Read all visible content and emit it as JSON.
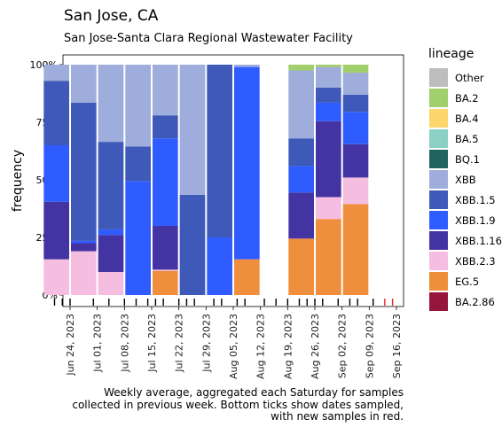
{
  "header": {
    "title": "San Jose, CA",
    "subtitle": "San Jose-Santa Clara Regional Wastewater Facility"
  },
  "caption": {
    "lines": [
      "Weekly average, aggregated each Saturday for samples",
      "collected in previous week. Bottom ticks show dates sampled,",
      "with new samples in red."
    ]
  },
  "legend": {
    "title": "lineage",
    "items": [
      {
        "label": "Other",
        "color": "#bdbdbd"
      },
      {
        "label": "BA.2",
        "color": "#a1cf6b"
      },
      {
        "label": "BA.4",
        "color": "#fcd56b"
      },
      {
        "label": "BA.5",
        "color": "#8ccfc4"
      },
      {
        "label": "BQ.1",
        "color": "#21635e"
      },
      {
        "label": "XBB",
        "color": "#9eaddb"
      },
      {
        "label": "XBB.1.5",
        "color": "#3f59b8"
      },
      {
        "label": "XBB.1.9",
        "color": "#2f5cff"
      },
      {
        "label": "XBB.1.16",
        "color": "#4433a3"
      },
      {
        "label": "XBB.2.3",
        "color": "#f5bde0"
      },
      {
        "label": "EG.5",
        "color": "#ef8e3c"
      },
      {
        "label": "BA.2.86",
        "color": "#96153d"
      }
    ]
  },
  "chart_data": {
    "type": "bar",
    "stacked": true,
    "ylabel": "frequency",
    "ylim": [
      0,
      1
    ],
    "yticks": [
      0,
      0.25,
      0.5,
      0.75,
      1
    ],
    "ytick_labels": [
      "0%",
      "25%",
      "50%",
      "75%",
      "100%"
    ],
    "xlim": [
      "2023-06-24",
      "2023-09-16"
    ],
    "xtick_labels": [
      "Jun 24, 2023",
      "Jul 01, 2023",
      "Jul 08, 2023",
      "Jul 15, 2023",
      "Jul 22, 2023",
      "Jul 29, 2023",
      "Aug 05, 2023",
      "Aug 12, 2023",
      "Aug 19, 2023",
      "Aug 26, 2023",
      "Sep 02, 2023",
      "Sep 09, 2023",
      "Sep 16, 2023"
    ],
    "categories": [
      "2023-06-24",
      "2023-07-01",
      "2023-07-08",
      "2023-07-15",
      "2023-07-22",
      "2023-07-29",
      "2023-08-05",
      "2023-08-12",
      "2023-08-19",
      "2023-08-26",
      "2023-09-02",
      "2023-09-09",
      "2023-09-16"
    ],
    "series": [
      {
        "name": "EG.5",
        "values": [
          0,
          0,
          0,
          0,
          0.105,
          0,
          0,
          0.155,
          0,
          0.245,
          0.33,
          0.395,
          0
        ]
      },
      {
        "name": "XBB.2.3",
        "values": [
          0.155,
          0.19,
          0.1,
          0,
          0.005,
          0,
          0,
          0,
          0,
          0,
          0.095,
          0.115,
          0
        ]
      },
      {
        "name": "XBB.1.16",
        "values": [
          0.25,
          0.035,
          0.16,
          0,
          0.19,
          0,
          0,
          0,
          0,
          0.2,
          0.33,
          0.145,
          0
        ]
      },
      {
        "name": "XBB.1.9",
        "values": [
          0.245,
          0.01,
          0.025,
          0.495,
          0.38,
          0,
          0.25,
          0.835,
          0,
          0.115,
          0.08,
          0.14,
          0
        ]
      },
      {
        "name": "XBB.1.5",
        "values": [
          0.28,
          0.6,
          0.38,
          0.15,
          0.1,
          0.435,
          0.75,
          0,
          0,
          0.12,
          0.065,
          0.075,
          0
        ]
      },
      {
        "name": "XBB",
        "values": [
          0.07,
          0.165,
          0.335,
          0.355,
          0.22,
          0.565,
          0,
          0.01,
          0,
          0.295,
          0.09,
          0.095,
          0
        ]
      },
      {
        "name": "BA.2",
        "values": [
          0,
          0,
          0,
          0,
          0,
          0,
          0,
          0,
          0,
          0.025,
          0.01,
          0.035,
          0
        ]
      }
    ],
    "sample_dates_black": [
      "2023-06-20",
      "2023-06-22",
      "2023-06-24",
      "2023-06-30",
      "2023-07-04",
      "2023-07-08",
      "2023-07-11",
      "2023-07-14",
      "2023-07-16",
      "2023-07-18",
      "2023-07-22",
      "2023-07-24",
      "2023-07-26",
      "2023-07-31",
      "2023-08-02",
      "2023-08-06",
      "2023-08-08",
      "2023-08-13",
      "2023-08-16",
      "2023-08-19",
      "2023-08-22",
      "2023-08-24",
      "2023-08-26",
      "2023-08-28",
      "2023-09-01",
      "2023-09-04",
      "2023-09-06",
      "2023-09-10"
    ],
    "sample_dates_red": [
      "2023-09-13",
      "2023-09-15"
    ]
  }
}
